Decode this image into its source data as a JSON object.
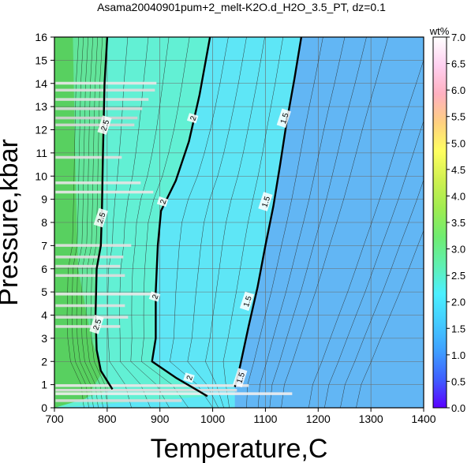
{
  "chart_data": {
    "type": "heatmap",
    "title": "Asama20040901pum+2_melt-K2O.d_H2O_3.5_PT, dz=0.1",
    "xlabel": "Temperature,C",
    "ylabel": "Pressure,kbar",
    "xlim": [
      700,
      1400
    ],
    "ylim": [
      0,
      16
    ],
    "xticks": [
      700,
      800,
      900,
      1000,
      1100,
      1200,
      1300,
      1400
    ],
    "yticks": [
      0,
      1,
      2,
      3,
      4,
      5,
      6,
      7,
      8,
      9,
      10,
      11,
      12,
      13,
      14,
      15,
      16
    ],
    "grid": true,
    "colorbar": {
      "label": "wt%",
      "range": [
        0.0,
        7.0
      ],
      "ticks": [
        "0.0",
        "0.5",
        "1.0",
        "1.5",
        "2.0",
        "2.5",
        "3.0",
        "3.5",
        "4.0",
        "4.5",
        "5.0",
        "5.5",
        "6.0",
        "6.5",
        "7.0"
      ],
      "colors": [
        "#5a00ff",
        "#3f5fff",
        "#3fa0ff",
        "#44ccff",
        "#4cf0ff",
        "#60f0b0",
        "#70ec70",
        "#a0ec50",
        "#d0f050",
        "#ffff60",
        "#ffd080",
        "#ffb0c0",
        "#ffd0f0",
        "#ffffff"
      ]
    },
    "contours": [
      {
        "level": "1.5",
        "points": [
          [
            1042,
            0.9
          ],
          [
            1052,
            1.8
          ],
          [
            1068,
            3.5
          ],
          [
            1085,
            5.2
          ],
          [
            1100,
            7.0
          ],
          [
            1115,
            8.7
          ],
          [
            1128,
            10.5
          ],
          [
            1140,
            12.3
          ],
          [
            1155,
            14.2
          ],
          [
            1168,
            16
          ]
        ]
      },
      {
        "level": "2",
        "points": [
          [
            990,
            0.5
          ],
          [
            930,
            1.3
          ],
          [
            885,
            2.0
          ],
          [
            892,
            3.0
          ],
          [
            892,
            5.0
          ],
          [
            896,
            7.0
          ],
          [
            902,
            8.5
          ],
          [
            930,
            9.8
          ],
          [
            955,
            11.5
          ],
          [
            975,
            13.5
          ],
          [
            995,
            16
          ]
        ]
      },
      {
        "level": "2.5",
        "points": [
          [
            810,
            0.8
          ],
          [
            788,
            1.6
          ],
          [
            780,
            2.5
          ],
          [
            778,
            4.0
          ],
          [
            780,
            6.0
          ],
          [
            788,
            7.0
          ],
          [
            790,
            8.5
          ],
          [
            792,
            11.0
          ],
          [
            795,
            14.0
          ],
          [
            800,
            16
          ]
        ]
      }
    ],
    "contour_labels": [
      {
        "text": "1.5",
        "x": 1052,
        "y": 1.3
      },
      {
        "text": "1.5",
        "x": 1065,
        "y": 4.6
      },
      {
        "text": "1.5",
        "x": 1100,
        "y": 8.9
      },
      {
        "text": "1.5",
        "x": 1135,
        "y": 12.5
      },
      {
        "text": "2",
        "x": 955,
        "y": 1.3
      },
      {
        "text": "2",
        "x": 890,
        "y": 4.8
      },
      {
        "text": "2",
        "x": 905,
        "y": 8.9
      },
      {
        "text": "2",
        "x": 962,
        "y": 12.5
      },
      {
        "text": "2.5",
        "x": 780,
        "y": 3.6
      },
      {
        "text": "2.5",
        "x": 788,
        "y": 8.2
      },
      {
        "text": "2.5",
        "x": 795,
        "y": 12.2
      }
    ]
  }
}
